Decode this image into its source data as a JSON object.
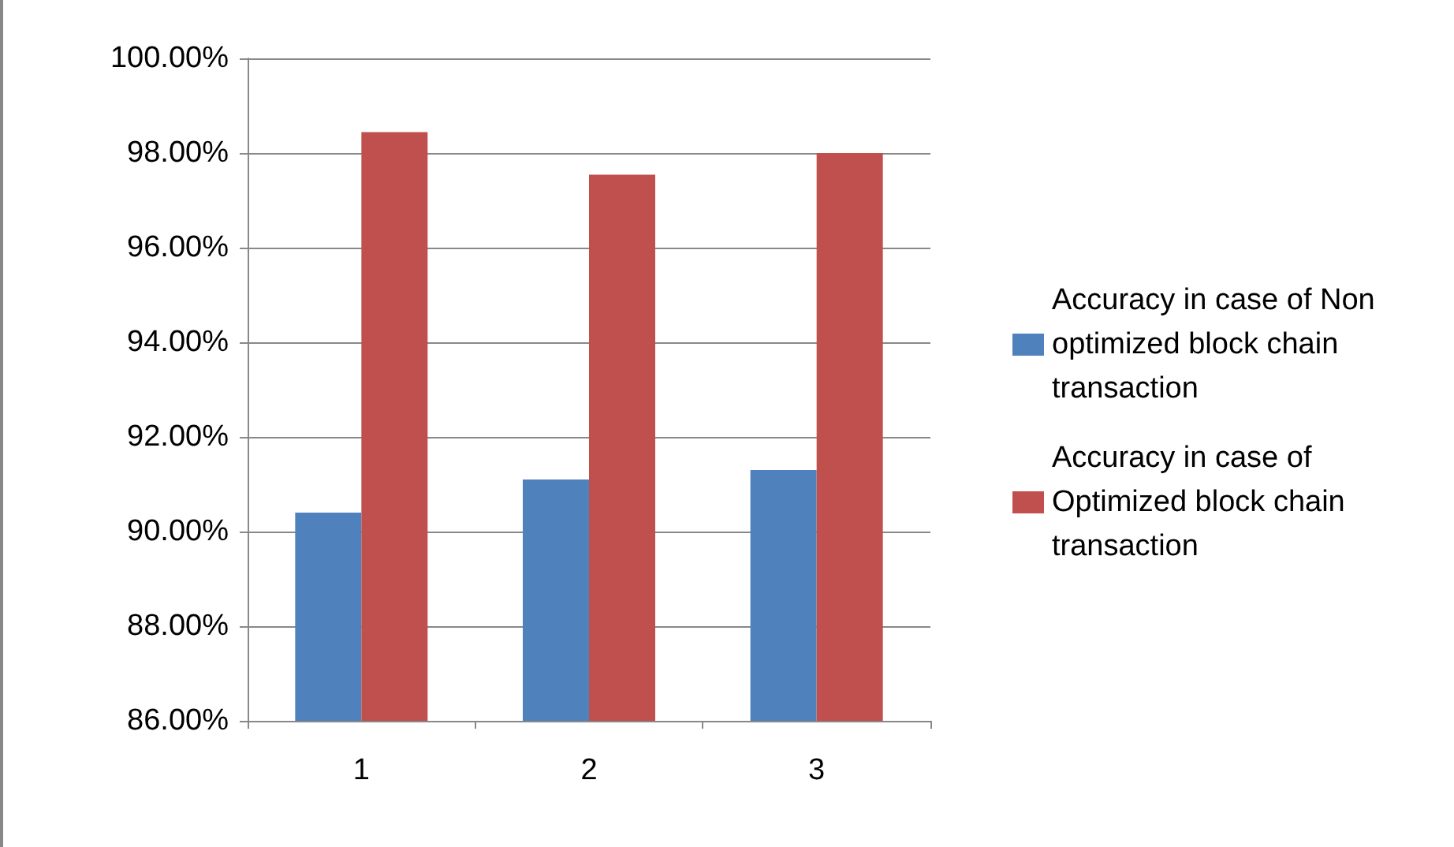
{
  "chart_data": {
    "type": "bar",
    "categories": [
      "1",
      "2",
      "3"
    ],
    "series": [
      {
        "name": "Accuracy in case of Non optimized block chain transaction",
        "color": "#4f81bd",
        "values": [
          90.4,
          91.1,
          91.3
        ]
      },
      {
        "name": "Accuracy in case of Optimized block chain transaction",
        "color": "#c0504d",
        "values": [
          98.44,
          97.54,
          98.0
        ]
      }
    ],
    "ylim": [
      86,
      100
    ],
    "yticks": [
      {
        "value": 86,
        "label": "86.00%"
      },
      {
        "value": 88,
        "label": "88.00%"
      },
      {
        "value": 90,
        "label": "90.00%"
      },
      {
        "value": 92,
        "label": "92.00%"
      },
      {
        "value": 94,
        "label": "94.00%"
      },
      {
        "value": 96,
        "label": "96.00%"
      },
      {
        "value": 98,
        "label": "98.00%"
      },
      {
        "value": 100,
        "label": "100.00%"
      }
    ],
    "grid": "y",
    "legend": "right"
  }
}
